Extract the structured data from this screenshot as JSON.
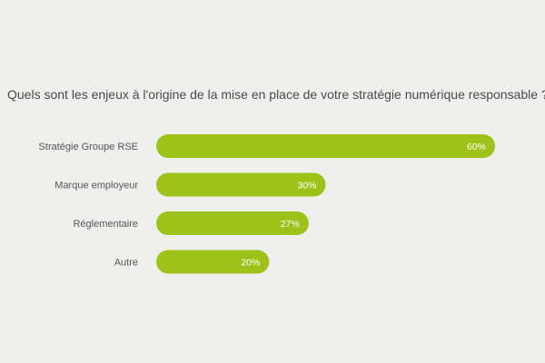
{
  "chart_data": {
    "type": "bar",
    "orientation": "horizontal",
    "title": "Quels sont les enjeux à l'origine de la mise en place de votre stratégie numérique responsable ?",
    "categories": [
      "Stratégie Groupe RSE",
      "Marque employeur",
      "Réglementaire",
      "Autre"
    ],
    "values": [
      60,
      30,
      27,
      20
    ],
    "value_labels": [
      "60%",
      "30%",
      "27%",
      "20%"
    ],
    "unit": "%",
    "xlim": [
      0,
      60
    ],
    "grid": false,
    "legend": "none",
    "bar_color": "#9dc31a",
    "background_color": "#efefee"
  }
}
